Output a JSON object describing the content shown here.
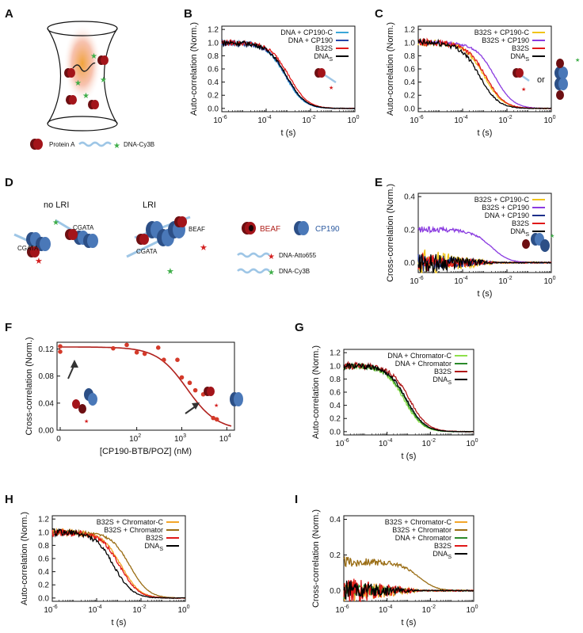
{
  "figure": {
    "panel_labels": [
      "A",
      "B",
      "C",
      "D",
      "E",
      "F",
      "G",
      "H",
      "I"
    ]
  },
  "panel_A": {
    "legend": [
      {
        "icon": "protein-a-icon",
        "label": "Protein A"
      },
      {
        "icon": "dna-cy3b-icon",
        "label": "DNA-Cy3B"
      }
    ]
  },
  "panel_C": {
    "or_text": "or"
  },
  "panel_D": {
    "no_lri": "no LRI",
    "lri": "LRI",
    "site_label": "CGATA",
    "beaf_small": "BEAF",
    "legend": [
      {
        "icon": "beaf-icon",
        "label": "BEAF",
        "color": "#b0201c"
      },
      {
        "icon": "cp190-icon",
        "label": "CP190",
        "color": "#2c5aa0"
      },
      {
        "icon": "dna-atto655-icon",
        "label": "DNA-Atto655"
      },
      {
        "icon": "dna-cy3b-icon",
        "label": "DNA-Cy3B"
      }
    ]
  },
  "colors": {
    "light_blue": "#3aa7d8",
    "blue": "#2646a8",
    "red": "#e01818",
    "black": "#000000",
    "yellow": "#f0c419",
    "purple": "#8a3be0",
    "navy": "#1c2f8a",
    "light_green": "#8ee04a",
    "green": "#2b8a2b",
    "dark_red": "#b01818",
    "orange": "#f3a52a",
    "brown": "#9a6d14",
    "curve_red": "#b0201c"
  },
  "chart_data": [
    {
      "id": "B",
      "type": "line",
      "xlabel": "t (s)",
      "ylabel": "Auto-correlation (Norm.)",
      "xscale": "log",
      "xlim": [
        1e-06,
        1
      ],
      "ylim": [
        -0.05,
        1.25
      ],
      "xticks": [
        "10",
        "10",
        "10",
        "10"
      ],
      "xtick_exps": [
        "-6",
        "-4",
        "-2",
        "0"
      ],
      "yticks": [
        "0.0",
        "0.2",
        "0.4",
        "0.6",
        "0.8",
        "1.0",
        "1.2"
      ],
      "legend_position": "top-right",
      "series": [
        {
          "name": "DNA + CP190-C",
          "sub": "",
          "color": "#3aa7d8",
          "tau": 0.00075,
          "noise": 0.05
        },
        {
          "name": "DNA + CP190",
          "sub": "",
          "color": "#2646a8",
          "tau": 0.0008,
          "noise": 0.05
        },
        {
          "name": "B32S",
          "sub": "",
          "color": "#e01818",
          "tau": 0.0011,
          "noise": 0.05
        },
        {
          "name": "DNA",
          "sub": "S",
          "color": "#000000",
          "tau": 0.00085,
          "noise": 0.05
        }
      ]
    },
    {
      "id": "C",
      "type": "line",
      "xlabel": "t (s)",
      "ylabel": "Auto-correlation (Norm.)",
      "xscale": "log",
      "xlim": [
        1e-06,
        1
      ],
      "ylim": [
        -0.05,
        1.25
      ],
      "xticks": [
        "10",
        "10",
        "10",
        "10"
      ],
      "xtick_exps": [
        "-6",
        "-4",
        "-2",
        "0"
      ],
      "yticks": [
        "0.0",
        "0.2",
        "0.4",
        "0.6",
        "0.8",
        "1.0",
        "1.2"
      ],
      "legend_position": "top-right",
      "series": [
        {
          "name": "B32S + CP190-C",
          "sub": "",
          "color": "#f0c419",
          "tau": 0.00095,
          "noise": 0.06
        },
        {
          "name": "B32S + CP190",
          "sub": "",
          "color": "#8a3be0",
          "tau": 0.0028,
          "noise": 0.03
        },
        {
          "name": "B32S",
          "sub": "",
          "color": "#e01818",
          "tau": 0.0011,
          "noise": 0.06
        },
        {
          "name": "DNA",
          "sub": "S",
          "color": "#000000",
          "tau": 0.0006,
          "noise": 0.06
        }
      ]
    },
    {
      "id": "E",
      "type": "line",
      "xlabel": "t (s)",
      "ylabel": "Cross-correlation (Norm.)",
      "xscale": "log",
      "xlim": [
        1e-06,
        1
      ],
      "ylim": [
        -0.06,
        0.42
      ],
      "xticks": [
        "10",
        "10",
        "10",
        "10"
      ],
      "xtick_exps": [
        "-6",
        "-4",
        "-2",
        "0"
      ],
      "yticks": [
        "0.0",
        "0.2",
        "0.4"
      ],
      "legend_position": "top-right",
      "series": [
        {
          "name": "B32S + CP190-C",
          "sub": "",
          "color": "#f0c419",
          "amp": 0.0,
          "tau": 2e-05,
          "noise": 0.09
        },
        {
          "name": "B32S + CP190",
          "sub": "",
          "color": "#8a3be0",
          "amp": 0.2,
          "tau": 0.002,
          "noise": 0.02
        },
        {
          "name": "DNA + CP190",
          "sub": "",
          "color": "#1c2f8a",
          "amp": 0.0,
          "tau": 2e-05,
          "noise": 0.06
        },
        {
          "name": "B32S",
          "sub": "",
          "color": "#e01818",
          "amp": 0.0,
          "tau": 2e-05,
          "noise": 0.06
        },
        {
          "name": "DNA",
          "sub": "S",
          "color": "#000000",
          "amp": 0.0,
          "tau": 2e-05,
          "noise": 0.07
        }
      ]
    },
    {
      "id": "F",
      "type": "scatter",
      "xlabel": "[CP190-BTB/POZ] (nM)",
      "ylabel": "Cross-correlation (Norm.)",
      "xscale": "log-with-zero",
      "xlim": [
        0,
        10000
      ],
      "ylim": [
        0,
        0.13
      ],
      "xticks": [
        "0",
        "10",
        "10",
        "10"
      ],
      "xtick_exps": [
        "",
        "2",
        "3",
        "4"
      ],
      "yticks": [
        "0.00",
        "0.04",
        "0.08",
        "0.12"
      ],
      "points": [
        {
          "x": 0,
          "y": 0.116
        },
        {
          "x": 0,
          "y": 0.124
        },
        {
          "x": 30,
          "y": 0.121
        },
        {
          "x": 60,
          "y": 0.126
        },
        {
          "x": 100,
          "y": 0.115
        },
        {
          "x": 150,
          "y": 0.113
        },
        {
          "x": 300,
          "y": 0.122
        },
        {
          "x": 400,
          "y": 0.104
        },
        {
          "x": 800,
          "y": 0.104
        },
        {
          "x": 1000,
          "y": 0.078
        },
        {
          "x": 1500,
          "y": 0.07
        },
        {
          "x": 2000,
          "y": 0.059
        },
        {
          "x": 3000,
          "y": 0.053
        },
        {
          "x": 5000,
          "y": 0.018
        },
        {
          "x": 6000,
          "y": 0.016
        }
      ],
      "fit": {
        "top": 0.123,
        "ic50": 1300,
        "hill": 1.3,
        "color": "#b0201c"
      }
    },
    {
      "id": "G",
      "type": "line",
      "xlabel": "t (s)",
      "ylabel": "Auto-correlation (Norm.)",
      "xscale": "log",
      "xlim": [
        1e-06,
        1
      ],
      "ylim": [
        -0.05,
        1.25
      ],
      "xticks": [
        "10",
        "10",
        "10",
        "10"
      ],
      "xtick_exps": [
        "-6",
        "-4",
        "-2",
        "0"
      ],
      "yticks": [
        "0.0",
        "0.2",
        "0.4",
        "0.6",
        "0.8",
        "1.0",
        "1.2"
      ],
      "legend_position": "top-right",
      "series": [
        {
          "name": "DNA + Chromator-C",
          "sub": "",
          "color": "#8ee04a",
          "tau": 0.0006,
          "noise": 0.05
        },
        {
          "name": "DNA + Chromator",
          "sub": "",
          "color": "#2b8a2b",
          "tau": 0.0007,
          "noise": 0.05
        },
        {
          "name": "B32S",
          "sub": "",
          "color": "#b01818",
          "tau": 0.0011,
          "noise": 0.06
        },
        {
          "name": "DNA",
          "sub": "S",
          "color": "#000000",
          "tau": 0.0008,
          "noise": 0.05
        }
      ]
    },
    {
      "id": "H",
      "type": "line",
      "xlabel": "t (s)",
      "ylabel": "Auto-correlation (Norm.)",
      "xscale": "log",
      "xlim": [
        1e-06,
        1
      ],
      "ylim": [
        -0.05,
        1.25
      ],
      "xticks": [
        "10",
        "10",
        "10",
        "10"
      ],
      "xtick_exps": [
        "-6",
        "-4",
        "-2",
        "0"
      ],
      "yticks": [
        "0.0",
        "0.2",
        "0.4",
        "0.6",
        "0.8",
        "1.0",
        "1.2"
      ],
      "legend_position": "top-right",
      "series": [
        {
          "name": "B32S + Chromator-C",
          "sub": "",
          "color": "#f3a52a",
          "tau": 0.0013,
          "noise": 0.06
        },
        {
          "name": "B32S + Chromator",
          "sub": "",
          "color": "#9a6d14",
          "tau": 0.0032,
          "noise": 0.04
        },
        {
          "name": "B32S",
          "sub": "",
          "color": "#e01818",
          "tau": 0.0011,
          "noise": 0.07
        },
        {
          "name": "DNA",
          "sub": "S",
          "color": "#000000",
          "tau": 0.0006,
          "noise": 0.06
        }
      ]
    },
    {
      "id": "I",
      "type": "line",
      "xlabel": "t (s)",
      "ylabel": "Cross-correlation (Norm.)",
      "xscale": "log",
      "xlim": [
        1e-06,
        1
      ],
      "ylim": [
        -0.06,
        0.42
      ],
      "xticks": [
        "10",
        "10",
        "10",
        "10"
      ],
      "xtick_exps": [
        "-6",
        "-4",
        "-2",
        "0"
      ],
      "yticks": [
        "0.0",
        "0.2",
        "0.4"
      ],
      "legend_position": "top-right",
      "series": [
        {
          "name": "B32S + Chromator-C",
          "sub": "",
          "color": "#f3a52a",
          "amp": 0.0,
          "tau": 2e-05,
          "noise": 0.08
        },
        {
          "name": "B32S + Chromator",
          "sub": "",
          "color": "#9a6d14",
          "amp": 0.16,
          "tau": 0.003,
          "noise": 0.03
        },
        {
          "name": "DNA + Chromator",
          "sub": "",
          "color": "#2b8a2b",
          "amp": 0.0,
          "tau": 2e-05,
          "noise": 0.05
        },
        {
          "name": "B32S",
          "sub": "",
          "color": "#e01818",
          "amp": 0.0,
          "tau": 2e-05,
          "noise": 0.08
        },
        {
          "name": "DNA",
          "sub": "S",
          "color": "#000000",
          "amp": 0.0,
          "tau": 2e-05,
          "noise": 0.06
        }
      ]
    }
  ]
}
